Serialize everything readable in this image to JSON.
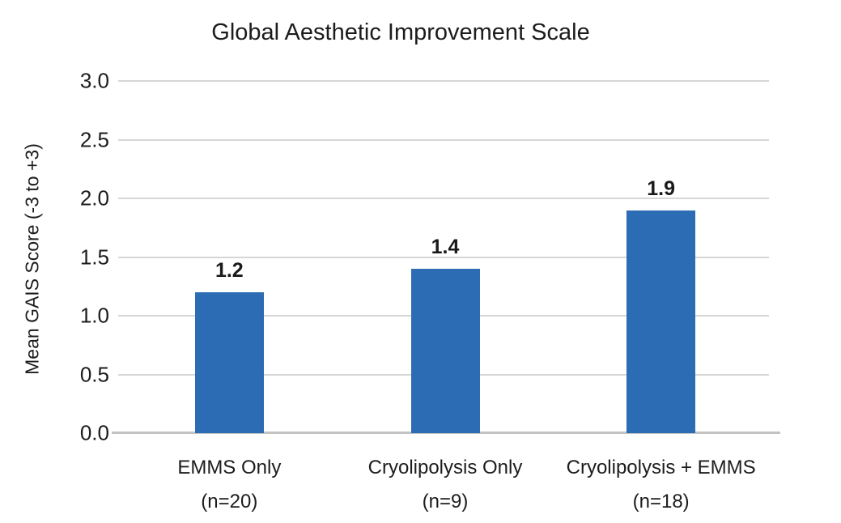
{
  "chart_data": {
    "type": "bar",
    "title": "Global Aesthetic Improvement Scale",
    "xlabel": "",
    "ylabel": "Mean GAIS Score  (-3 to +3)",
    "ylim": [
      0,
      3
    ],
    "y_tick_step": 0.5,
    "y_ticks": [
      3.0,
      2.5,
      2.0,
      1.5,
      1.0,
      0.5,
      0.0
    ],
    "y_tick_labels": [
      "3.0",
      "2.5",
      "2.0",
      "1.5",
      "1.0",
      "0.5",
      "0.0"
    ],
    "categories": [
      "EMMS Only",
      "Cryolipolysis Only",
      "Cryolipolysis + EMMS"
    ],
    "sample_sizes": [
      "(n=20)",
      "(n=9)",
      "(n=18)"
    ],
    "values": [
      1.2,
      1.4,
      1.9
    ],
    "data_labels": [
      "1.2",
      "1.4",
      "1.9"
    ],
    "grid": true,
    "legend": false,
    "colors": {
      "bar": "#2b6cb4",
      "gridline": "#d6d6d6",
      "axis_line": "#c3c3c3",
      "text": "#1c1c1c"
    }
  }
}
